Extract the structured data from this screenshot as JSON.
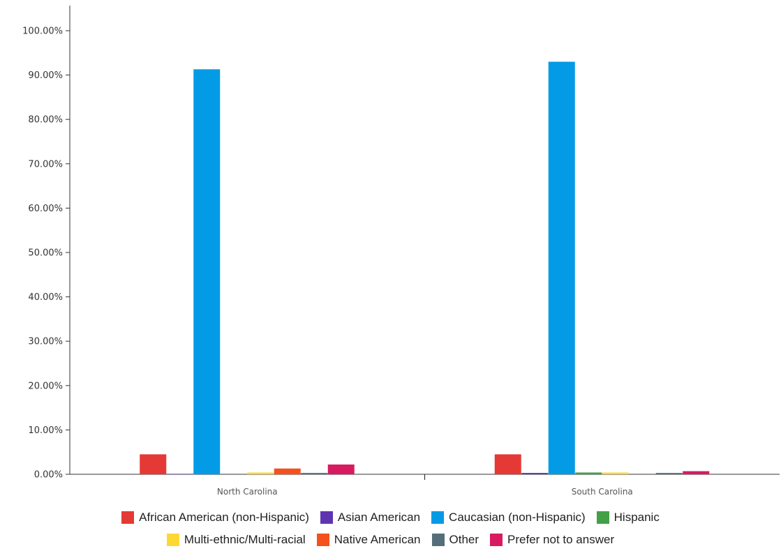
{
  "chart_data": {
    "type": "bar",
    "title": "",
    "xlabel": "",
    "ylabel": "",
    "categories": [
      "North Carolina",
      "South Carolina"
    ],
    "ylim": [
      0,
      100
    ],
    "yticks": [
      0,
      10,
      20,
      30,
      40,
      50,
      60,
      70,
      80,
      90,
      100
    ],
    "ytick_labels": [
      "0.00%",
      "10.00%",
      "20.00%",
      "30.00%",
      "40.00%",
      "50.00%",
      "60.00%",
      "70.00%",
      "80.00%",
      "90.00%",
      "100.00%"
    ],
    "grid": false,
    "legend_position": "bottom",
    "series": [
      {
        "name": "African American (non-Hispanic)",
        "color": "#e53935",
        "values": [
          4.5,
          4.5
        ]
      },
      {
        "name": "Asian American",
        "color": "#5e35b1",
        "values": [
          0.1,
          0.3
        ]
      },
      {
        "name": "Caucasian (non-Hispanic)",
        "color": "#039be5",
        "values": [
          91.3,
          93.0
        ]
      },
      {
        "name": "Hispanic",
        "color": "#43a047",
        "values": [
          0.0,
          0.4
        ]
      },
      {
        "name": "Multi-ethnic/Multi-racial",
        "color": "#fdd835",
        "values": [
          0.4,
          0.4
        ]
      },
      {
        "name": "Native American",
        "color": "#f4511e",
        "values": [
          1.3,
          0.0
        ]
      },
      {
        "name": "Other",
        "color": "#546e7a",
        "values": [
          0.3,
          0.3
        ]
      },
      {
        "name": "Prefer not to answer",
        "color": "#d81b60",
        "values": [
          2.2,
          0.7
        ]
      }
    ]
  }
}
